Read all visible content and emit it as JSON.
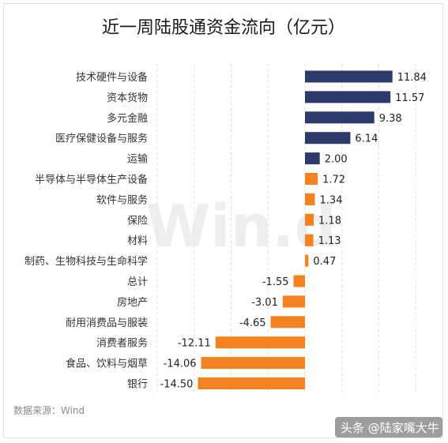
{
  "chart_data": {
    "type": "bar",
    "orientation": "horizontal",
    "title": "近一周陆股通资金流向（亿元）",
    "categories": [
      "技术硬件与设备",
      "资本货物",
      "多元金融",
      "医疗保健设备与服务",
      "运输",
      "半导体与半导体生产设备",
      "软件与服务",
      "保险",
      "材料",
      "制药、生物科技与生命科学",
      "总计",
      "房地产",
      "耐用消费品与服装",
      "消费者服务",
      "食品、饮料与烟草",
      "银行"
    ],
    "values": [
      11.84,
      11.57,
      9.38,
      6.14,
      2.0,
      1.72,
      1.34,
      1.18,
      1.13,
      0.47,
      -1.55,
      -3.01,
      -4.65,
      -12.11,
      -14.06,
      -14.5
    ],
    "value_labels": [
      "11.84",
      "11.57",
      "9.38",
      "6.14",
      "2.00",
      "1.72",
      "1.34",
      "1.18",
      "1.13",
      "0.47",
      "-1.55",
      "-3.01",
      "-4.65",
      "-12.11",
      "-14.06",
      "-14.50"
    ],
    "xlim": [
      -20,
      20
    ],
    "grid": true,
    "legend": "none",
    "colors": {
      "large_positive": "#2e3a6b",
      "other": "#f58220"
    },
    "source": "数据来源：Wind",
    "watermark_logo": "Win.d"
  },
  "watermark_badge": "头条 @陆家嘴大牛"
}
